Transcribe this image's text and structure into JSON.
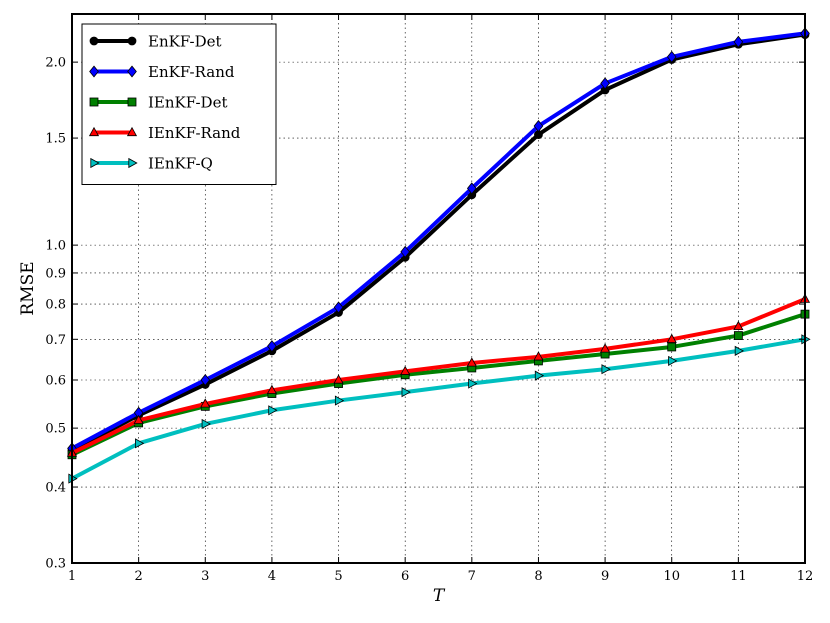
{
  "chart_data": {
    "type": "line",
    "xlabel": "T",
    "ylabel": "RMSE",
    "x": [
      1,
      2,
      3,
      4,
      5,
      6,
      7,
      8,
      9,
      10,
      11,
      12
    ],
    "xlim": [
      1,
      12
    ],
    "ylim": [
      0.3,
      2.4
    ],
    "yscale": "log",
    "xticks": [
      "1",
      "2",
      "3",
      "4",
      "5",
      "6",
      "7",
      "8",
      "9",
      "10",
      "11",
      "12"
    ],
    "yticks": [
      {
        "value": 0.3,
        "label": "0.3"
      },
      {
        "value": 0.4,
        "label": "0.4"
      },
      {
        "value": 0.5,
        "label": "0.5"
      },
      {
        "value": 0.6,
        "label": "0.6"
      },
      {
        "value": 0.7,
        "label": "0.7"
      },
      {
        "value": 0.8,
        "label": "0.8"
      },
      {
        "value": 0.9,
        "label": "0.9"
      },
      {
        "value": 1.0,
        "label": "1.0"
      },
      {
        "value": 1.5,
        "label": "1.5"
      },
      {
        "value": 2.0,
        "label": "2.0"
      }
    ],
    "grid": true,
    "legend_position": "top-left",
    "series": [
      {
        "name": "EnKF-Det",
        "color": "#000000",
        "marker": "circle",
        "values": [
          0.46,
          0.525,
          0.59,
          0.67,
          0.775,
          0.955,
          1.21,
          1.52,
          1.8,
          2.02,
          2.14,
          2.22
        ]
      },
      {
        "name": "EnKF-Rand",
        "color": "#0000ff",
        "marker": "diamond",
        "values": [
          0.463,
          0.53,
          0.6,
          0.682,
          0.79,
          0.975,
          1.24,
          1.57,
          1.845,
          2.04,
          2.16,
          2.23
        ]
      },
      {
        "name": "IEnKF-Det",
        "color": "#008000",
        "marker": "square",
        "values": [
          0.452,
          0.51,
          0.543,
          0.57,
          0.592,
          0.612,
          0.628,
          0.645,
          0.662,
          0.68,
          0.71,
          0.77
        ]
      },
      {
        "name": "IEnKF-Rand",
        "color": "#ff0000",
        "marker": "triangle-up",
        "values": [
          0.455,
          0.515,
          0.548,
          0.577,
          0.6,
          0.62,
          0.64,
          0.655,
          0.675,
          0.7,
          0.735,
          0.815
        ]
      },
      {
        "name": "IEnKF-Q",
        "color": "#00bfbf",
        "marker": "triangle-right",
        "values": [
          0.413,
          0.472,
          0.508,
          0.535,
          0.555,
          0.573,
          0.592,
          0.61,
          0.625,
          0.645,
          0.67,
          0.7
        ]
      }
    ]
  }
}
